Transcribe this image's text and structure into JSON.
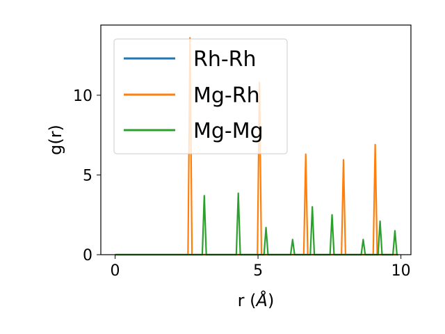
{
  "chart_data": {
    "type": "line",
    "title": "",
    "xlabel": "r (",
    "xlabel_unit": "Å",
    "xlabel_close": ")",
    "ylabel": "g(r)",
    "xlim": [
      -0.5,
      10.35
    ],
    "ylim": [
      0,
      14.4
    ],
    "xticks": [
      0,
      5,
      10
    ],
    "yticks": [
      0,
      5,
      10
    ],
    "grid": false,
    "legend_position": "top-left",
    "series": [
      {
        "name": "Rh-Rh",
        "color": "#1f77b4",
        "x": [
          0,
          9.9
        ],
        "y": [
          0,
          0
        ]
      },
      {
        "name": "Mg-Rh",
        "color": "#ff7f0e",
        "x": [
          0,
          2.55,
          2.62,
          2.69,
          4.98,
          5.05,
          5.12,
          6.6,
          6.67,
          6.74,
          7.92,
          7.99,
          8.06,
          9.03,
          9.1,
          9.17,
          9.9
        ],
        "y": [
          0,
          0,
          13.6,
          0,
          0,
          10.8,
          0,
          0,
          6.3,
          0,
          0,
          5.95,
          0,
          0,
          6.9,
          0,
          0
        ]
      },
      {
        "name": "Mg-Mg",
        "color": "#2ca02c",
        "x": [
          0,
          3.05,
          3.12,
          3.19,
          4.24,
          4.31,
          4.38,
          5.21,
          5.28,
          5.35,
          6.14,
          6.21,
          6.28,
          6.83,
          6.9,
          6.97,
          7.52,
          7.59,
          7.66,
          8.61,
          8.68,
          8.75,
          9.2,
          9.27,
          9.34,
          9.72,
          9.79,
          9.86,
          9.9
        ],
        "y": [
          0,
          0,
          3.7,
          0,
          0,
          3.85,
          0,
          0,
          1.7,
          0,
          0,
          0.95,
          0,
          0,
          3.0,
          0,
          0,
          2.5,
          0,
          0,
          0.95,
          0,
          0,
          2.1,
          0,
          0,
          1.5,
          0,
          0
        ]
      }
    ]
  }
}
